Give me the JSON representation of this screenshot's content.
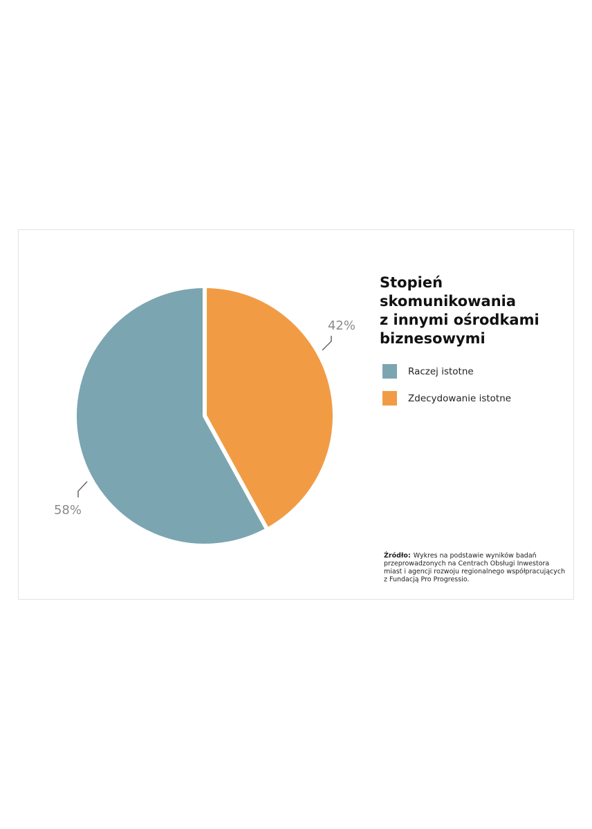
{
  "chart_data": {
    "type": "pie",
    "title": [
      "Stopień",
      "skomunikowania",
      "z innymi ośrodkami",
      "biznesowymi"
    ],
    "series": [
      {
        "name": "Zdecydowanie istotne",
        "color": "#f19c45",
        "values": [
          42
        ],
        "value_labels": [
          "42%"
        ]
      },
      {
        "name": "Raczej istotne",
        "color": "#7ba5b1",
        "values": [
          58
        ],
        "value_labels": [
          "58%"
        ]
      }
    ],
    "legend_order": [
      1,
      0
    ],
    "source_label": "Źródło:",
    "source_lines": [
      "Wykres na podstawie wyników badań",
      "przeprowadzonych na Centrach Obsługi Inwestora",
      "miast i agencji rozwoju regionalnego współpracujących",
      "z Fundacją Pro Progressio."
    ]
  }
}
